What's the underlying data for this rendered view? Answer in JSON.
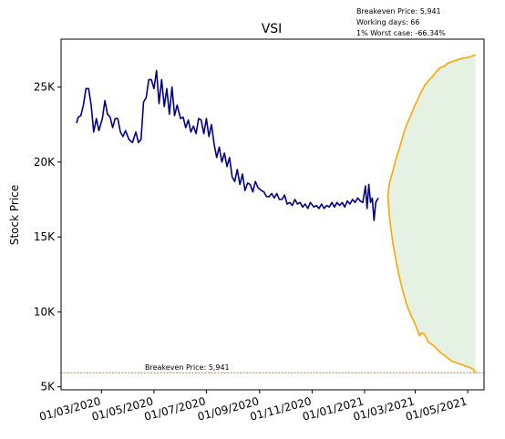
{
  "chart_data": {
    "type": "line",
    "title": "VSI",
    "ylabel": "Stock Price",
    "xlabel": "",
    "info": [
      "Breakeven Price: 5,941",
      "Working days: 66",
      "1% Worst case: -66.34%"
    ],
    "breakeven": {
      "value": 5941,
      "label": "Breakeven Price: 5,941",
      "color": "#ff0000"
    },
    "xlim": [
      "2020-01-14",
      "2021-05-20"
    ],
    "ylim": [
      4800,
      28200
    ],
    "yticks": [
      {
        "value": 5000,
        "label": "5K"
      },
      {
        "value": 10000,
        "label": "10K"
      },
      {
        "value": 15000,
        "label": "15K"
      },
      {
        "value": 20000,
        "label": "20K"
      },
      {
        "value": 25000,
        "label": "25K"
      }
    ],
    "xticks": [
      {
        "value": "2020-03-01",
        "label": "01/03/2020"
      },
      {
        "value": "2020-05-01",
        "label": "01/05/2020"
      },
      {
        "value": "2020-07-01",
        "label": "01/07/2020"
      },
      {
        "value": "2020-09-01",
        "label": "01/09/2020"
      },
      {
        "value": "2020-11-01",
        "label": "01/11/2020"
      },
      {
        "value": "2021-01-01",
        "label": "01/01/2021"
      },
      {
        "value": "2021-03-01",
        "label": "01/03/2021"
      },
      {
        "value": "2021-05-01",
        "label": "01/05/2021"
      }
    ],
    "series": [
      {
        "color": "#00008b",
        "points": [
          [
            "2020-02-01",
            22600
          ],
          [
            "2020-02-03",
            23000
          ],
          [
            "2020-02-06",
            23100
          ],
          [
            "2020-02-09",
            23800
          ],
          [
            "2020-02-12",
            24900
          ],
          [
            "2020-02-15",
            24900
          ],
          [
            "2020-02-18",
            23800
          ],
          [
            "2020-02-21",
            22000
          ],
          [
            "2020-02-24",
            22900
          ],
          [
            "2020-02-27",
            22100
          ],
          [
            "2020-03-02",
            22900
          ],
          [
            "2020-03-05",
            24100
          ],
          [
            "2020-03-08",
            23200
          ],
          [
            "2020-03-11",
            23000
          ],
          [
            "2020-03-14",
            22300
          ],
          [
            "2020-03-17",
            22900
          ],
          [
            "2020-03-20",
            22900
          ],
          [
            "2020-03-23",
            22000
          ],
          [
            "2020-03-26",
            21700
          ],
          [
            "2020-03-29",
            22100
          ],
          [
            "2020-04-02",
            21500
          ],
          [
            "2020-04-06",
            21300
          ],
          [
            "2020-04-10",
            22000
          ],
          [
            "2020-04-13",
            21300
          ],
          [
            "2020-04-16",
            21500
          ],
          [
            "2020-04-19",
            24000
          ],
          [
            "2020-04-22",
            24300
          ],
          [
            "2020-04-25",
            25500
          ],
          [
            "2020-04-28",
            25500
          ],
          [
            "2020-05-01",
            24900
          ],
          [
            "2020-05-04",
            26100
          ],
          [
            "2020-05-07",
            23900
          ],
          [
            "2020-05-10",
            25500
          ],
          [
            "2020-05-13",
            23700
          ],
          [
            "2020-05-16",
            24900
          ],
          [
            "2020-05-19",
            23200
          ],
          [
            "2020-05-22",
            25000
          ],
          [
            "2020-05-25",
            23100
          ],
          [
            "2020-05-28",
            23800
          ],
          [
            "2020-06-01",
            22900
          ],
          [
            "2020-06-04",
            23000
          ],
          [
            "2020-06-07",
            22300
          ],
          [
            "2020-06-10",
            22800
          ],
          [
            "2020-06-13",
            22000
          ],
          [
            "2020-06-16",
            22400
          ],
          [
            "2020-06-19",
            21900
          ],
          [
            "2020-06-22",
            22900
          ],
          [
            "2020-06-25",
            22800
          ],
          [
            "2020-06-28",
            21900
          ],
          [
            "2020-07-01",
            22900
          ],
          [
            "2020-07-04",
            21700
          ],
          [
            "2020-07-07",
            22500
          ],
          [
            "2020-07-10",
            21200
          ],
          [
            "2020-07-13",
            20300
          ],
          [
            "2020-07-16",
            21000
          ],
          [
            "2020-07-19",
            20000
          ],
          [
            "2020-07-22",
            20600
          ],
          [
            "2020-07-25",
            19700
          ],
          [
            "2020-07-28",
            20300
          ],
          [
            "2020-07-31",
            19000
          ],
          [
            "2020-08-03",
            18700
          ],
          [
            "2020-08-06",
            19500
          ],
          [
            "2020-08-09",
            18500
          ],
          [
            "2020-08-12",
            19200
          ],
          [
            "2020-08-15",
            18100
          ],
          [
            "2020-08-18",
            18600
          ],
          [
            "2020-08-21",
            18500
          ],
          [
            "2020-08-24",
            18000
          ],
          [
            "2020-08-27",
            18700
          ],
          [
            "2020-08-30",
            18300
          ],
          [
            "2020-09-03",
            18100
          ],
          [
            "2020-09-06",
            18000
          ],
          [
            "2020-09-09",
            17700
          ],
          [
            "2020-09-12",
            17700
          ],
          [
            "2020-09-15",
            17900
          ],
          [
            "2020-09-18",
            17600
          ],
          [
            "2020-09-21",
            17900
          ],
          [
            "2020-09-24",
            17500
          ],
          [
            "2020-09-27",
            17500
          ],
          [
            "2020-09-30",
            17800
          ],
          [
            "2020-10-03",
            17200
          ],
          [
            "2020-10-06",
            17300
          ],
          [
            "2020-10-09",
            17100
          ],
          [
            "2020-10-12",
            17500
          ],
          [
            "2020-10-15",
            17200
          ],
          [
            "2020-10-18",
            17300
          ],
          [
            "2020-10-21",
            17000
          ],
          [
            "2020-10-24",
            17200
          ],
          [
            "2020-10-27",
            16900
          ],
          [
            "2020-10-30",
            17300
          ],
          [
            "2020-11-03",
            17000
          ],
          [
            "2020-11-06",
            17100
          ],
          [
            "2020-11-09",
            16900
          ],
          [
            "2020-11-12",
            17200
          ],
          [
            "2020-11-15",
            16900
          ],
          [
            "2020-11-18",
            17100
          ],
          [
            "2020-11-21",
            17000
          ],
          [
            "2020-11-24",
            17300
          ],
          [
            "2020-11-27",
            17000
          ],
          [
            "2020-11-30",
            17300
          ],
          [
            "2020-12-03",
            17100
          ],
          [
            "2020-12-06",
            17300
          ],
          [
            "2020-12-09",
            17000
          ],
          [
            "2020-12-12",
            17400
          ],
          [
            "2020-12-15",
            17200
          ],
          [
            "2020-12-18",
            17500
          ],
          [
            "2020-12-21",
            17300
          ],
          [
            "2020-12-24",
            17600
          ],
          [
            "2020-12-27",
            17400
          ],
          [
            "2020-12-30",
            17300
          ],
          [
            "2021-01-02",
            18400
          ],
          [
            "2021-01-04",
            16900
          ],
          [
            "2021-01-06",
            18500
          ],
          [
            "2021-01-08",
            17300
          ],
          [
            "2021-01-10",
            17600
          ],
          [
            "2021-01-12",
            16100
          ],
          [
            "2021-01-14",
            17300
          ],
          [
            "2021-01-17",
            17600
          ]
        ]
      },
      {
        "color": "#ffa500",
        "points": [
          [
            "2021-01-28",
            17700
          ],
          [
            "2021-01-30",
            18600
          ],
          [
            "2021-02-03",
            19400
          ],
          [
            "2021-02-07",
            20300
          ],
          [
            "2021-02-11",
            21000
          ],
          [
            "2021-02-15",
            21800
          ],
          [
            "2021-02-19",
            22500
          ],
          [
            "2021-02-23",
            23000
          ],
          [
            "2021-02-28",
            23700
          ],
          [
            "2021-03-04",
            24200
          ],
          [
            "2021-03-08",
            24700
          ],
          [
            "2021-03-12",
            25100
          ],
          [
            "2021-03-16",
            25400
          ],
          [
            "2021-03-21",
            25700
          ],
          [
            "2021-03-25",
            26000
          ],
          [
            "2021-03-30",
            26300
          ],
          [
            "2021-04-04",
            26400
          ],
          [
            "2021-04-08",
            26600
          ],
          [
            "2021-04-13",
            26700
          ],
          [
            "2021-04-18",
            26800
          ],
          [
            "2021-04-23",
            26900
          ],
          [
            "2021-04-28",
            26950
          ],
          [
            "2021-05-03",
            27000
          ],
          [
            "2021-05-07",
            27100
          ],
          [
            "2021-05-10",
            27150
          ]
        ]
      },
      {
        "color": "#ffa500",
        "points": [
          [
            "2021-01-28",
            17700
          ],
          [
            "2021-01-30",
            16300
          ],
          [
            "2021-02-03",
            14600
          ],
          [
            "2021-02-07",
            13300
          ],
          [
            "2021-02-11",
            12200
          ],
          [
            "2021-02-15",
            11300
          ],
          [
            "2021-02-19",
            10500
          ],
          [
            "2021-02-23",
            9900
          ],
          [
            "2021-02-28",
            9300
          ],
          [
            "2021-03-04",
            8700
          ],
          [
            "2021-03-06",
            8400
          ],
          [
            "2021-03-08",
            8600
          ],
          [
            "2021-03-12",
            8500
          ],
          [
            "2021-03-16",
            8000
          ],
          [
            "2021-03-21",
            7800
          ],
          [
            "2021-03-25",
            7600
          ],
          [
            "2021-03-30",
            7300
          ],
          [
            "2021-04-04",
            7100
          ],
          [
            "2021-04-08",
            6900
          ],
          [
            "2021-04-13",
            6700
          ],
          [
            "2021-04-18",
            6600
          ],
          [
            "2021-04-23",
            6500
          ],
          [
            "2021-04-28",
            6400
          ],
          [
            "2021-05-03",
            6300
          ],
          [
            "2021-05-07",
            6200
          ],
          [
            "2021-05-10",
            5941
          ]
        ]
      }
    ],
    "band": {
      "color": "#e5f1e2",
      "between": [
        1,
        2
      ]
    }
  }
}
